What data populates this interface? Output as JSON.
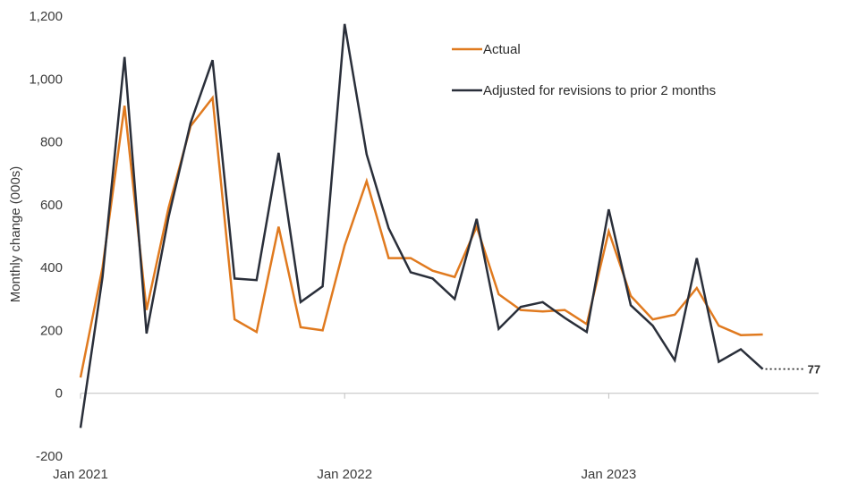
{
  "chart_data": {
    "type": "line",
    "xlabel": "",
    "ylabel": "Monthly change (000s)",
    "ylim": [
      -200,
      1200
    ],
    "yticks": [
      "-200",
      "0",
      "200",
      "400",
      "600",
      "800",
      "1,000",
      "1,200"
    ],
    "ytick_values": [
      -200,
      0,
      200,
      400,
      600,
      800,
      1000,
      1200
    ],
    "x": [
      "Jan 2021",
      "Feb 2021",
      "Mar 2021",
      "Apr 2021",
      "May 2021",
      "Jun 2021",
      "Jul 2021",
      "Aug 2021",
      "Sep 2021",
      "Oct 2021",
      "Nov 2021",
      "Dec 2021",
      "Jan 2022",
      "Feb 2022",
      "Mar 2022",
      "Apr 2022",
      "May 2022",
      "Jun 2022",
      "Jul 2022",
      "Aug 2022",
      "Sep 2022",
      "Oct 2022",
      "Nov 2022",
      "Dec 2022",
      "Jan 2023",
      "Feb 2023",
      "Mar 2023",
      "Apr 2023",
      "May 2023",
      "Jun 2023",
      "Jul 2023",
      "Aug 2023"
    ],
    "xtick_labels": [
      {
        "index": 0,
        "label": "Jan 2021"
      },
      {
        "index": 12,
        "label": "Jan 2022"
      },
      {
        "index": 24,
        "label": "Jan 2023"
      }
    ],
    "grid": false,
    "legend_placement": "top-right",
    "series": [
      {
        "name": "Actual",
        "color": "#E07A1F",
        "values": [
          50,
          400,
          915,
          265,
          590,
          850,
          940,
          235,
          195,
          530,
          210,
          200,
          470,
          675,
          430,
          430,
          390,
          370,
          530,
          315,
          265,
          260,
          265,
          220,
          515,
          310,
          235,
          250,
          335,
          215,
          185,
          187
        ]
      },
      {
        "name": "Adjusted for revisions to prior 2 months",
        "color": "#2A2F3A",
        "values": [
          -110,
          370,
          1070,
          190,
          560,
          860,
          1060,
          365,
          360,
          765,
          290,
          340,
          1175,
          760,
          525,
          385,
          365,
          300,
          555,
          205,
          275,
          290,
          240,
          195,
          585,
          280,
          215,
          105,
          430,
          100,
          140,
          77
        ]
      }
    ],
    "annotations": [
      {
        "text": "77",
        "series_index": 1,
        "point_index": 31
      }
    ]
  }
}
